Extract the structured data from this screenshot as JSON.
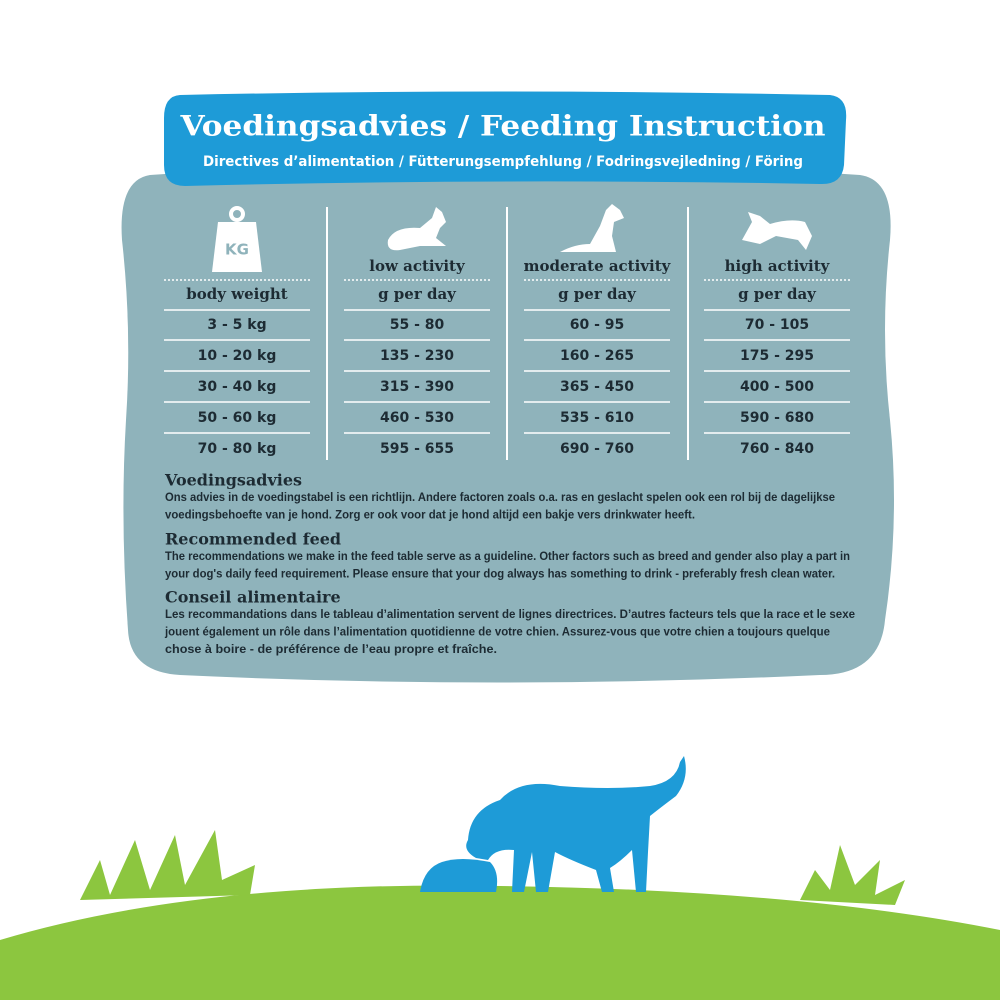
{
  "header": {
    "title": "Voedingsadvies / Feeding Instruction",
    "subtitle": "Directives d’alimentation / Fütterungsempfehlung / Fodringsvejledning / Föring"
  },
  "table": {
    "weight_icon": "KG",
    "activities": [
      "low activity",
      "moderate activity",
      "high activity"
    ],
    "headers": [
      "body weight",
      "g per day",
      "g per day",
      "g per day"
    ],
    "rows": [
      [
        "3 - 5 kg",
        "55 - 80",
        "60 - 95",
        "70 - 105"
      ],
      [
        "10 - 20 kg",
        "135 - 230",
        "160 - 265",
        "175 - 295"
      ],
      [
        "30 - 40 kg",
        "315 - 390",
        "365 - 450",
        "400 - 500"
      ],
      [
        "50 - 60 kg",
        "460 - 530",
        "535 - 610",
        "590 - 680"
      ],
      [
        "70 - 80 kg",
        "595 - 655",
        "690 - 760",
        "760 - 840"
      ]
    ]
  },
  "sections": [
    {
      "heading": "Voedingsadvies",
      "lines": [
        "Ons advies in de voedingstabel is een richtlijn. Andere factoren zoals o.a. ras en geslacht spelen ook een rol bij de dagelijkse",
        "voedingsbehoefte van je hond. Zorg er ook voor dat je hond altijd een bakje vers drinkwater heeft."
      ]
    },
    {
      "heading": "Recommended feed",
      "lines": [
        "The recommendations we make in the feed table serve as a guideline. Other factors such as breed and gender also play a part in",
        "your dog's daily feed requirement. Please ensure that your dog always has something to drink - preferably fresh clean water."
      ]
    },
    {
      "heading": "Conseil alimentaire",
      "lines": [
        "Les recommandations dans le tableau d’alimentation servent de lignes directrices. D’autres facteurs tels que la race et le sexe",
        "jouent également un rôle dans l’alimentation quotidienne de votre chien. Assurez-vous que votre chien a toujours quelque",
        "chose à boire - de préférence de l’eau propre et fraîche."
      ]
    }
  ]
}
